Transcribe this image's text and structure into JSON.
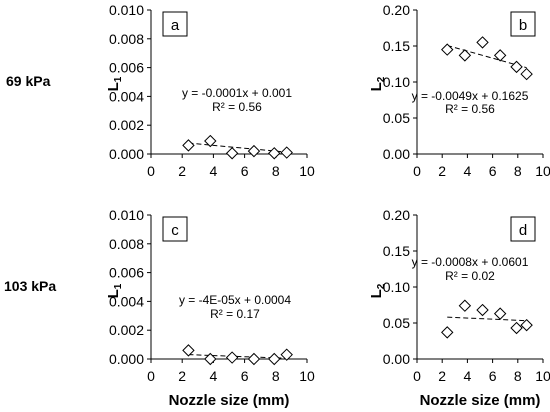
{
  "row_labels": [
    "69 kPa",
    "103 kPa"
  ],
  "chart_data": [
    {
      "type": "scatter",
      "panel": "a",
      "ylabel": "L",
      "ylabel_sub": "1",
      "xlabel": "",
      "xlim": [
        0,
        10
      ],
      "ylim": [
        0,
        0.01
      ],
      "x_ticks": [
        "0",
        "2",
        "4",
        "6",
        "8",
        "10"
      ],
      "y_ticks": [
        "0.000",
        "0.002",
        "0.004",
        "0.006",
        "0.008",
        "0.010"
      ],
      "series": [
        {
          "x": [
            2.4,
            3.8,
            5.2,
            6.6,
            7.9,
            8.7
          ],
          "y": [
            0.0006,
            0.0009,
            5e-05,
            0.0002,
            5e-05,
            0.0001
          ]
        }
      ],
      "trendline": {
        "slope": -0.0001,
        "intercept": 0.001
      },
      "equation": "y = -0.0001x + 0.001",
      "r2": "R² = 0.56"
    },
    {
      "type": "scatter",
      "panel": "b",
      "ylabel": "L",
      "ylabel_sub": "2",
      "xlabel": "",
      "xlim": [
        0,
        10
      ],
      "ylim": [
        0,
        0.2
      ],
      "x_ticks": [
        "0",
        "2",
        "4",
        "6",
        "8",
        "10"
      ],
      "y_ticks": [
        "0.00",
        "0.05",
        "0.10",
        "0.15",
        "0.20"
      ],
      "series": [
        {
          "x": [
            2.4,
            3.8,
            5.2,
            6.6,
            7.9,
            8.7
          ],
          "y": [
            0.145,
            0.137,
            0.155,
            0.137,
            0.121,
            0.111
          ]
        }
      ],
      "trendline": {
        "slope": -0.0049,
        "intercept": 0.1625
      },
      "equation": "y = -0.0049x + 0.1625",
      "r2": "R² = 0.56"
    },
    {
      "type": "scatter",
      "panel": "c",
      "ylabel": "L",
      "ylabel_sub": "1",
      "xlabel": "Nozzle size (mm)",
      "xlim": [
        0,
        10
      ],
      "ylim": [
        0,
        0.01
      ],
      "x_ticks": [
        "0",
        "2",
        "4",
        "6",
        "8",
        "10"
      ],
      "y_ticks": [
        "0.000",
        "0.002",
        "0.004",
        "0.006",
        "0.008",
        "0.010"
      ],
      "series": [
        {
          "x": [
            2.4,
            3.8,
            5.2,
            6.6,
            7.9,
            8.7
          ],
          "y": [
            0.0006,
            0.0,
            0.0001,
            0.0,
            0.0,
            0.0003
          ]
        }
      ],
      "trendline": {
        "slope": -4e-05,
        "intercept": 0.0004
      },
      "equation": "y = -4E-05x + 0.0004",
      "r2": "R² = 0.17"
    },
    {
      "type": "scatter",
      "panel": "d",
      "ylabel": "L",
      "ylabel_sub": "2",
      "xlabel": "Nozzle size (mm)",
      "xlim": [
        0,
        10
      ],
      "ylim": [
        0,
        0.2
      ],
      "x_ticks": [
        "0",
        "2",
        "4",
        "6",
        "8",
        "10"
      ],
      "y_ticks": [
        "0.00",
        "0.05",
        "0.10",
        "0.15",
        "0.20"
      ],
      "series": [
        {
          "x": [
            2.4,
            3.8,
            5.2,
            6.6,
            7.9,
            8.7
          ],
          "y": [
            0.037,
            0.074,
            0.068,
            0.063,
            0.043,
            0.047
          ]
        }
      ],
      "trendline": {
        "slope": -0.0008,
        "intercept": 0.0601
      },
      "equation": "y = -0.0008x + 0.0601",
      "r2": "R² = 0.02"
    }
  ]
}
